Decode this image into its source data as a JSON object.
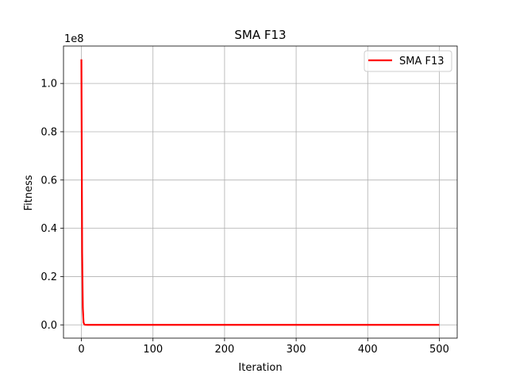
{
  "chart_data": {
    "type": "line",
    "title": "SMA F13",
    "xlabel": "Iteration",
    "ylabel": "Fitness",
    "offset_label": "1e8",
    "xlim": [
      -25,
      525
    ],
    "ylim": [
      -0.055,
      1.155
    ],
    "x_ticks": [
      0,
      100,
      200,
      300,
      400,
      500
    ],
    "x_tick_labels": [
      "0",
      "100",
      "200",
      "300",
      "400",
      "500"
    ],
    "y_ticks": [
      0.0,
      0.2,
      0.4,
      0.6,
      0.8,
      1.0
    ],
    "y_tick_labels": [
      "0.0",
      "0.2",
      "0.4",
      "0.6",
      "0.8",
      "1.0"
    ],
    "grid": true,
    "legend_position": "upper right",
    "series": [
      {
        "name": "SMA F13",
        "color": "#ff0000",
        "x": [
          0,
          1,
          2,
          3,
          4,
          5,
          6,
          8,
          10,
          20,
          50,
          100,
          200,
          300,
          400,
          500
        ],
        "y": [
          1.1,
          0.3,
          0.07,
          0.01,
          0.002,
          0.0005,
          0.0002,
          0.0001,
          5e-05,
          2e-05,
          1e-05,
          0.0,
          0.0,
          0.0,
          0.0,
          0.0
        ]
      }
    ]
  }
}
